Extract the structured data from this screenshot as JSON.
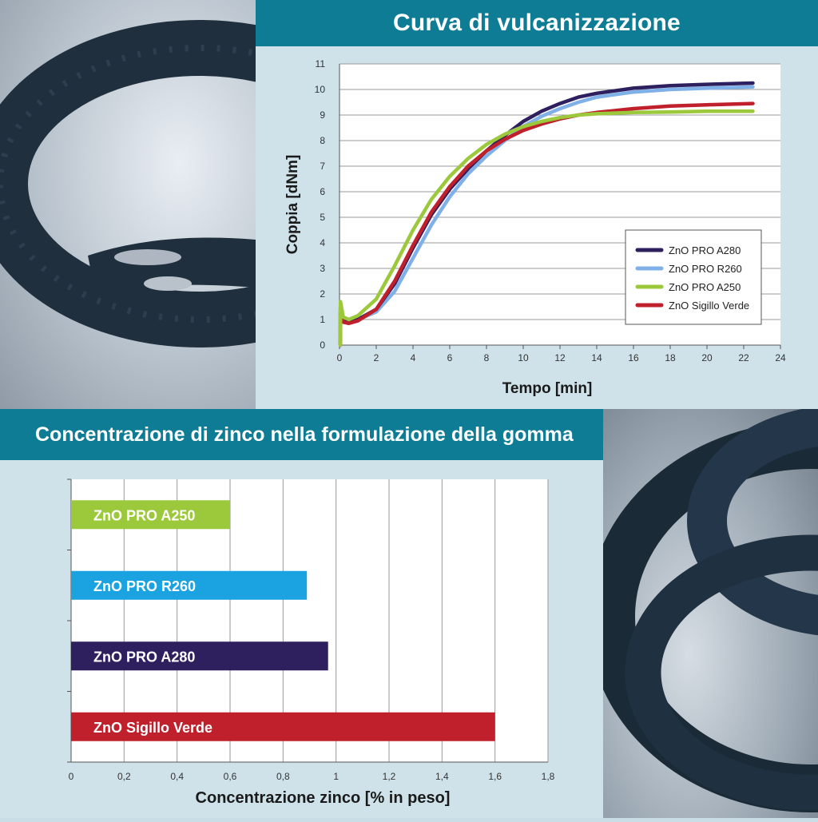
{
  "top_title": "Curva di vulcanizzazione",
  "bottom_title": "Concentrazione di zinco nella formulazione della gomma",
  "colors": {
    "banner": "#0e7c95",
    "panel": "#cfe2ea",
    "ZnO PRO A280": "#2e1f5e",
    "ZnO PRO R260": "#7fb1e8",
    "ZnO PRO A250": "#9cc93b",
    "ZnO Sigillo Verde": "#c0202c",
    "bar_R260": "#1aa3e0"
  },
  "chart_data": [
    {
      "type": "line",
      "xlabel": "Tempo [min]",
      "ylabel": "Coppia [dNm]",
      "xlim": [
        0,
        24
      ],
      "ylim": [
        0,
        11
      ],
      "xticks": [
        "0",
        "2",
        "4",
        "6",
        "8",
        "10",
        "12",
        "14",
        "16",
        "18",
        "20",
        "22",
        "24"
      ],
      "yticks": [
        "0",
        "1",
        "2",
        "3",
        "4",
        "5",
        "6",
        "7",
        "8",
        "9",
        "10",
        "11"
      ],
      "grid": true,
      "legend_position": "bottom-right",
      "series": [
        {
          "name": "ZnO PRO A280",
          "x": [
            0.05,
            0.2,
            0.5,
            1,
            2,
            3,
            4,
            5,
            6,
            7,
            8,
            9,
            10,
            11,
            12,
            13,
            14,
            16,
            18,
            20,
            22.5
          ],
          "y": [
            1.4,
            0.95,
            0.9,
            1.0,
            1.4,
            2.4,
            3.8,
            5.1,
            6.1,
            6.9,
            7.6,
            8.2,
            8.75,
            9.15,
            9.45,
            9.7,
            9.85,
            10.05,
            10.15,
            10.2,
            10.25
          ]
        },
        {
          "name": "ZnO PRO R260",
          "x": [
            0.05,
            0.2,
            0.5,
            1,
            2,
            3,
            4,
            5,
            6,
            7,
            8,
            9,
            10,
            11,
            12,
            13,
            14,
            16,
            18,
            20,
            22.5
          ],
          "y": [
            1.4,
            0.95,
            0.9,
            1.0,
            1.3,
            2.1,
            3.4,
            4.7,
            5.8,
            6.7,
            7.4,
            8.0,
            8.55,
            8.95,
            9.25,
            9.5,
            9.7,
            9.9,
            10.0,
            10.05,
            10.1
          ]
        },
        {
          "name": "ZnO PRO A250",
          "x": [
            0.05,
            0.2,
            0.5,
            1,
            2,
            3,
            4,
            5,
            6,
            7,
            8,
            9,
            10,
            11,
            12,
            13,
            14,
            16,
            18,
            20,
            22.5
          ],
          "y": [
            1.7,
            1.1,
            1.0,
            1.15,
            1.8,
            3.1,
            4.5,
            5.7,
            6.6,
            7.3,
            7.85,
            8.25,
            8.55,
            8.75,
            8.9,
            9.0,
            9.05,
            9.1,
            9.12,
            9.15,
            9.15
          ]
        },
        {
          "name": "ZnO Sigillo Verde",
          "x": [
            0.05,
            0.2,
            0.5,
            1,
            2,
            3,
            4,
            5,
            6,
            7,
            8,
            9,
            10,
            11,
            12,
            13,
            14,
            16,
            18,
            20,
            22.5
          ],
          "y": [
            1.5,
            0.9,
            0.85,
            0.95,
            1.4,
            2.5,
            3.9,
            5.2,
            6.2,
            7.0,
            7.6,
            8.05,
            8.4,
            8.65,
            8.85,
            9.0,
            9.1,
            9.25,
            9.35,
            9.4,
            9.45
          ]
        }
      ]
    },
    {
      "type": "bar",
      "orientation": "horizontal",
      "xlabel": "Concentrazione zinco [% in peso]",
      "xlim": [
        0,
        1.8
      ],
      "xticks": [
        "0",
        "0,2",
        "0,4",
        "0,6",
        "0,8",
        "1",
        "1,2",
        "1,4",
        "1,6",
        "1,8"
      ],
      "grid": true,
      "categories": [
        "ZnO PRO A250",
        "ZnO PRO R260",
        "ZnO PRO A280",
        "ZnO Sigillo Verde"
      ],
      "values": [
        0.6,
        0.89,
        0.97,
        1.6
      ],
      "bar_colors": [
        "#9cc93b",
        "#1aa3e0",
        "#2e1f5e",
        "#c0202c"
      ]
    }
  ]
}
